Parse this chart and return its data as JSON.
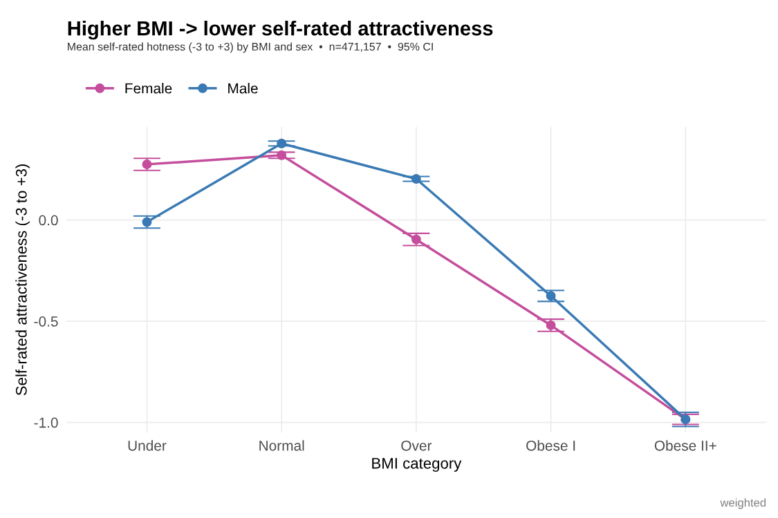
{
  "chart_data": {
    "type": "line",
    "title": "Higher BMI -> lower self-rated attractiveness",
    "subtitle": "Mean self-rated hotness (-3 to +3) by BMI and sex  •  n=471,157  •  95% CI",
    "xlabel": "BMI category",
    "ylabel": "Self-rated attractiveness (-3 to +3)",
    "categories": [
      "Under",
      "Normal",
      "Over",
      "Obese I",
      "Obese II+"
    ],
    "series": [
      {
        "name": "Female",
        "color": "#c44e9c",
        "values": [
          0.275,
          0.32,
          -0.096,
          -0.52,
          -0.985
        ],
        "errors": [
          0.03,
          0.015,
          0.03,
          0.03,
          [
            -1.01,
            -0.96
          ]
        ]
      },
      {
        "name": "Male",
        "color": "#3a7ab4",
        "values": [
          -0.01,
          0.378,
          0.203,
          -0.375,
          -0.985
        ],
        "errors": [
          0.03,
          0.012,
          0.012,
          0.027,
          [
            -1.02,
            -0.95
          ]
        ]
      }
    ],
    "ylim": [
      -1.05,
      0.46
    ],
    "yticks": [
      {
        "value": -1.0,
        "label": "-1.0"
      },
      {
        "value": -0.5,
        "label": "-0.5"
      },
      {
        "value": 0.0,
        "label": "0.0"
      }
    ],
    "grid": true,
    "legend": "top left",
    "marker": "circle",
    "line_style": "solid",
    "annotations": [
      "weighted"
    ]
  }
}
